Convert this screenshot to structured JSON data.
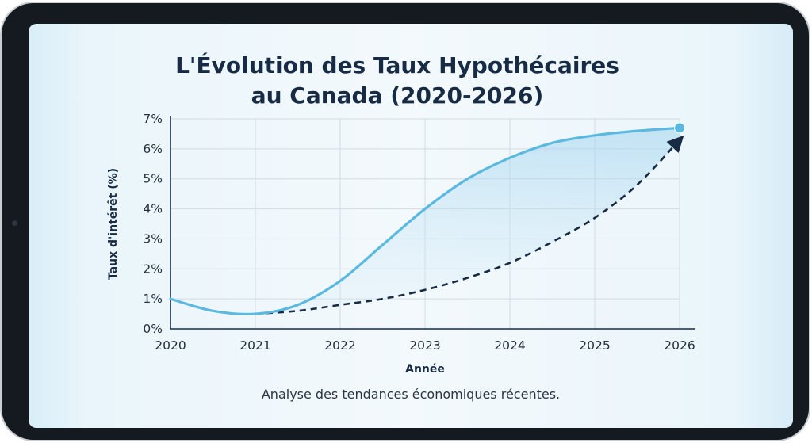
{
  "chart_data": {
    "type": "line",
    "title_line1": "L'Évolution des Taux Hypothécaires",
    "title_line2": "au Canada (2020-2026)",
    "subtitle": "Analyse des tendances économiques récentes.",
    "xlabel": "Année",
    "ylabel": "Taux d'intérêt (%)",
    "x_ticks": [
      "2020",
      "2021",
      "2022",
      "2023",
      "2024",
      "2025",
      "2026"
    ],
    "y_ticks": [
      "0%",
      "1%",
      "2%",
      "3%",
      "4%",
      "5%",
      "6%",
      "7%"
    ],
    "xlim": [
      2020,
      2026
    ],
    "ylim": [
      0,
      7
    ],
    "grid": true,
    "series": [
      {
        "style": "solid",
        "color": "#5bb9e0",
        "area_fill": true,
        "x": [
          2020,
          2020.5,
          2021,
          2021.5,
          2022,
          2022.5,
          2023,
          2023.5,
          2024,
          2024.5,
          2025,
          2025.5,
          2026
        ],
        "values": [
          1.0,
          0.6,
          0.5,
          0.8,
          1.6,
          2.8,
          4.0,
          5.0,
          5.7,
          6.2,
          6.45,
          6.6,
          6.7
        ]
      },
      {
        "style": "dashed",
        "color": "#172b45",
        "arrow_end": true,
        "x": [
          2021,
          2021.5,
          2022,
          2022.5,
          2023,
          2023.5,
          2024,
          2024.5,
          2025,
          2025.5,
          2026
        ],
        "values": [
          0.5,
          0.6,
          0.8,
          1.0,
          1.3,
          1.7,
          2.2,
          2.9,
          3.7,
          4.8,
          6.3
        ]
      }
    ],
    "end_marker": {
      "x": 2026,
      "y": 6.7,
      "color": "#5bb9e0"
    }
  }
}
